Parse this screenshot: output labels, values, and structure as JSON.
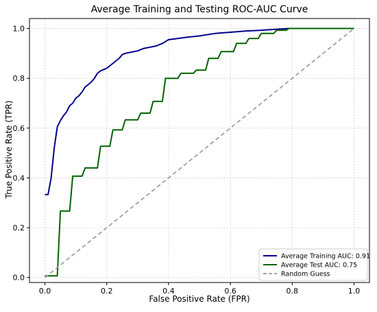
{
  "chart_data": {
    "type": "line",
    "title": "Average Training and Testing ROC-AUC Curve",
    "xlabel": "False Positive Rate (FPR)",
    "ylabel": "True Positive Rate (TPR)",
    "xlim": [
      -0.05,
      1.05
    ],
    "ylim": [
      -0.02,
      1.04
    ],
    "xticks": [
      0.0,
      0.2,
      0.4,
      0.6,
      0.8,
      1.0
    ],
    "xtick_labels": [
      "0.0",
      "0.2",
      "0.4",
      "0.6",
      "0.8",
      "1.0"
    ],
    "yticks": [
      0.0,
      0.2,
      0.4,
      0.6,
      0.8,
      1.0
    ],
    "ytick_labels": [
      "0.0",
      "0.2",
      "0.4",
      "0.6",
      "0.8",
      "1.0"
    ],
    "grid": true,
    "legend_position": "lower-right",
    "series": [
      {
        "name": "Average Training AUC: 0.91",
        "color": "#00008b",
        "style": "solid",
        "x": [
          0.0,
          0.01,
          0.02,
          0.03,
          0.04,
          0.05,
          0.06,
          0.07,
          0.08,
          0.09,
          0.1,
          0.11,
          0.12,
          0.13,
          0.14,
          0.15,
          0.16,
          0.17,
          0.18,
          0.2,
          0.22,
          0.24,
          0.25,
          0.26,
          0.28,
          0.3,
          0.32,
          0.34,
          0.36,
          0.38,
          0.4,
          0.43,
          0.46,
          0.5,
          0.55,
          0.6,
          0.65,
          0.7,
          0.75,
          0.79,
          0.85,
          0.9,
          1.0
        ],
        "y": [
          0.333,
          0.333,
          0.4,
          0.52,
          0.605,
          0.63,
          0.65,
          0.665,
          0.69,
          0.7,
          0.72,
          0.73,
          0.745,
          0.765,
          0.775,
          0.785,
          0.8,
          0.82,
          0.83,
          0.84,
          0.86,
          0.88,
          0.895,
          0.9,
          0.905,
          0.91,
          0.92,
          0.925,
          0.93,
          0.94,
          0.955,
          0.96,
          0.965,
          0.97,
          0.98,
          0.985,
          0.99,
          0.993,
          0.997,
          1.0,
          1.0,
          1.0,
          1.0
        ]
      },
      {
        "name": "Average Test AUC: 0.75",
        "color": "#006400",
        "style": "solid",
        "x": [
          0.0,
          0.04,
          0.05,
          0.08,
          0.09,
          0.12,
          0.13,
          0.17,
          0.18,
          0.21,
          0.22,
          0.25,
          0.26,
          0.3,
          0.31,
          0.34,
          0.35,
          0.38,
          0.39,
          0.43,
          0.44,
          0.48,
          0.49,
          0.52,
          0.53,
          0.56,
          0.57,
          0.61,
          0.62,
          0.65,
          0.66,
          0.69,
          0.7,
          0.74,
          0.75,
          0.78,
          0.79,
          0.8,
          1.0
        ],
        "y": [
          0.007,
          0.007,
          0.267,
          0.267,
          0.407,
          0.407,
          0.44,
          0.44,
          0.527,
          0.527,
          0.593,
          0.593,
          0.633,
          0.633,
          0.66,
          0.66,
          0.707,
          0.707,
          0.8,
          0.8,
          0.82,
          0.82,
          0.833,
          0.833,
          0.88,
          0.88,
          0.907,
          0.907,
          0.94,
          0.94,
          0.96,
          0.96,
          0.98,
          0.98,
          0.993,
          0.993,
          1.0,
          1.0,
          1.0
        ]
      },
      {
        "name": "Random Guess",
        "color": "#a0a0a0",
        "style": "dashed",
        "x": [
          0.0,
          1.0
        ],
        "y": [
          0.0,
          1.0
        ]
      }
    ]
  }
}
